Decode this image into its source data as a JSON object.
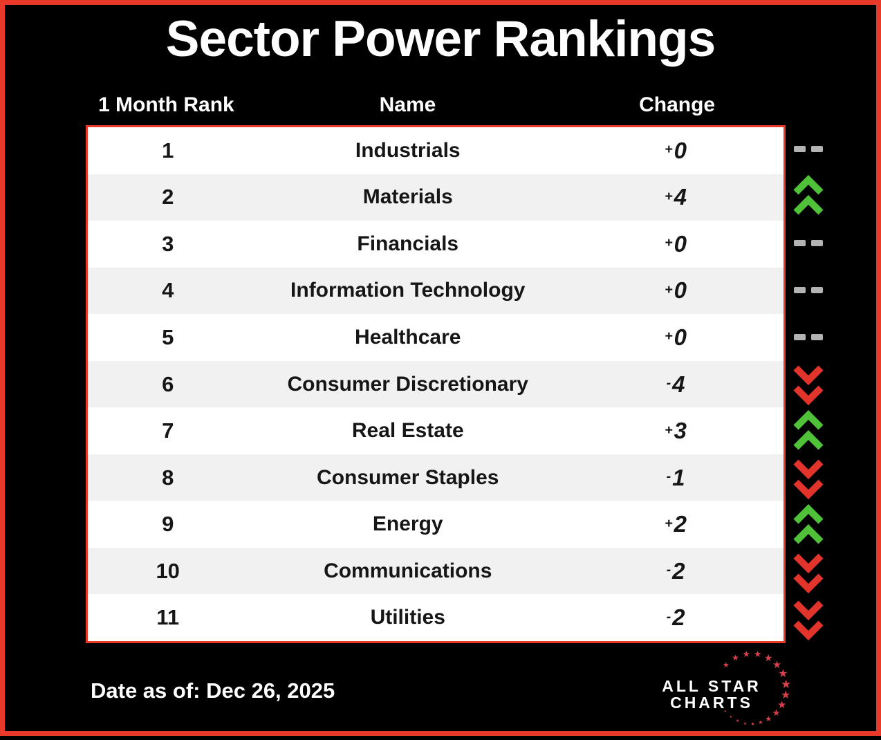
{
  "title": "Sector Power Rankings",
  "columns": [
    "1 Month Rank",
    "Name",
    "Change"
  ],
  "rows": [
    {
      "rank": "1",
      "name": "Industrials",
      "sign": "+",
      "value": "0",
      "direction": "flat"
    },
    {
      "rank": "2",
      "name": "Materials",
      "sign": "+",
      "value": "4",
      "direction": "up"
    },
    {
      "rank": "3",
      "name": "Financials",
      "sign": "+",
      "value": "0",
      "direction": "flat"
    },
    {
      "rank": "4",
      "name": "Information Technology",
      "sign": "+",
      "value": "0",
      "direction": "flat"
    },
    {
      "rank": "5",
      "name": "Healthcare",
      "sign": "+",
      "value": "0",
      "direction": "flat"
    },
    {
      "rank": "6",
      "name": "Consumer Discretionary",
      "sign": "-",
      "value": "4",
      "direction": "down"
    },
    {
      "rank": "7",
      "name": "Real Estate",
      "sign": "+",
      "value": "3",
      "direction": "up"
    },
    {
      "rank": "8",
      "name": "Consumer Staples",
      "sign": "-",
      "value": "1",
      "direction": "down"
    },
    {
      "rank": "9",
      "name": "Energy",
      "sign": "+",
      "value": "2",
      "direction": "up"
    },
    {
      "rank": "10",
      "name": "Communications",
      "sign": "-",
      "value": "2",
      "direction": "down"
    },
    {
      "rank": "11",
      "name": "Utilities",
      "sign": "-",
      "value": "2",
      "direction": "down"
    }
  ],
  "footer": {
    "date_text": "Date as of: Dec 26, 2025"
  },
  "logo": {
    "line1": "ALL STAR",
    "line2": "CHARTS"
  },
  "icons": {
    "up": "double-chevron-up",
    "down": "double-chevron-down",
    "flat": "double-dash"
  },
  "colors": {
    "frame_red": "#e8392b",
    "up_green": "#4fc239",
    "down_red": "#e2342b",
    "flat_gray": "#b3b3b3",
    "row_alt_gray": "#f1f1f1",
    "star_red": "#d8414b",
    "background": "#000000",
    "text_dark": "#161616",
    "text_light": "#ffffff"
  },
  "chart_data": {
    "type": "table",
    "title": "Sector Power Rankings",
    "columns": [
      "1 Month Rank",
      "Name",
      "Change"
    ],
    "rows": [
      [
        1,
        "Industrials",
        "+0"
      ],
      [
        2,
        "Materials",
        "+4"
      ],
      [
        3,
        "Financials",
        "+0"
      ],
      [
        4,
        "Information Technology",
        "+0"
      ],
      [
        5,
        "Healthcare",
        "+0"
      ],
      [
        6,
        "Consumer Discretionary",
        "-4"
      ],
      [
        7,
        "Real Estate",
        "+3"
      ],
      [
        8,
        "Consumer Staples",
        "-1"
      ],
      [
        9,
        "Energy",
        "+2"
      ],
      [
        10,
        "Communications",
        "-2"
      ],
      [
        11,
        "Utilities",
        "-2"
      ]
    ],
    "as_of": "Dec 26, 2025"
  }
}
